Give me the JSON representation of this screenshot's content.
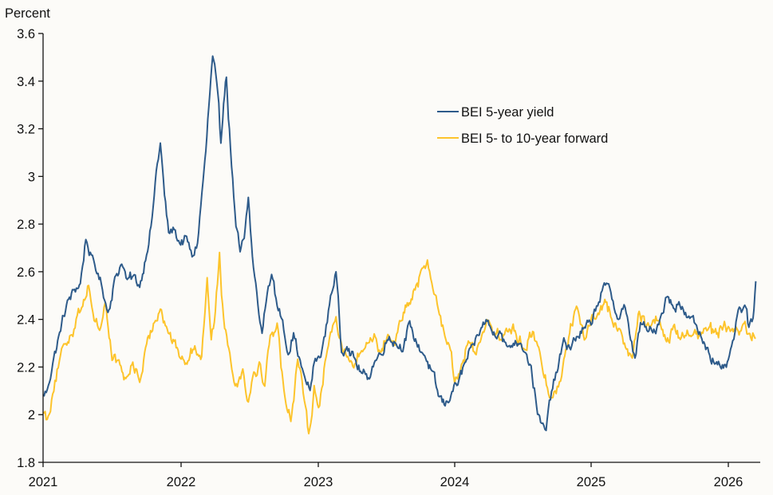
{
  "chart_data": {
    "type": "line",
    "title": "",
    "ylabel": "Percent",
    "xlabel": "",
    "ylim": [
      1.8,
      3.6
    ],
    "xlim": [
      2021.0,
      2026.23
    ],
    "yticks": [
      1.8,
      2,
      2.2,
      2.4,
      2.6,
      2.8,
      3,
      3.2,
      3.4,
      3.6
    ],
    "ytick_labels": [
      "1.8",
      "2",
      "2.2",
      "2.4",
      "2.6",
      "2.8",
      "3",
      "3.2",
      "3.4",
      "3.6"
    ],
    "xticks": [
      2021,
      2022,
      2023,
      2024,
      2025,
      2026
    ],
    "xtick_labels": [
      "2021",
      "2022",
      "2023",
      "2024",
      "2025",
      "2026"
    ],
    "grid": false,
    "legend_position": "top-right",
    "colors": {
      "background": "#fcfbf8",
      "axis": "#111111"
    },
    "series": [
      {
        "name": "BEI 5-year yield",
        "color": "#2e5b8a",
        "x": [
          2021.0,
          2021.03,
          2021.07,
          2021.12,
          2021.17,
          2021.22,
          2021.27,
          2021.31,
          2021.35,
          2021.39,
          2021.43,
          2021.47,
          2021.52,
          2021.57,
          2021.61,
          2021.66,
          2021.7,
          2021.75,
          2021.79,
          2021.82,
          2021.85,
          2021.88,
          2021.91,
          2021.95,
          2021.99,
          2022.04,
          2022.08,
          2022.12,
          2022.16,
          2022.18,
          2022.21,
          2022.23,
          2022.26,
          2022.29,
          2022.31,
          2022.33,
          2022.36,
          2022.4,
          2022.43,
          2022.46,
          2022.49,
          2022.52,
          2022.56,
          2022.59,
          2022.62,
          2022.66,
          2022.7,
          2022.74,
          2022.78,
          2022.82,
          2022.86,
          2022.9,
          2022.94,
          2022.97,
          2023.01,
          2023.05,
          2023.09,
          2023.13,
          2023.17,
          2023.21,
          2023.26,
          2023.31,
          2023.36,
          2023.41,
          2023.46,
          2023.52,
          2023.57,
          2023.62,
          2023.67,
          2023.72,
          2023.78,
          2023.83,
          2023.88,
          2023.93,
          2023.98,
          2024.03,
          2024.08,
          2024.13,
          2024.18,
          2024.23,
          2024.28,
          2024.33,
          2024.38,
          2024.43,
          2024.48,
          2024.52,
          2024.56,
          2024.6,
          2024.63,
          2024.67,
          2024.71,
          2024.75,
          2024.8,
          2024.85,
          2024.9,
          2024.95,
          2025.0,
          2025.04,
          2025.08,
          2025.12,
          2025.16,
          2025.2,
          2025.24,
          2025.28,
          2025.32,
          2025.36,
          2025.4,
          2025.45,
          2025.5,
          2025.55,
          2025.6,
          2025.64,
          2025.68,
          2025.72,
          2025.76,
          2025.8,
          2025.85,
          2025.9,
          2025.95,
          2026.0,
          2026.04,
          2026.08,
          2026.12,
          2026.15,
          2026.18,
          2026.2
        ],
        "values": [
          2.08,
          2.1,
          2.22,
          2.34,
          2.46,
          2.52,
          2.55,
          2.74,
          2.66,
          2.6,
          2.53,
          2.43,
          2.57,
          2.64,
          2.56,
          2.58,
          2.54,
          2.68,
          2.82,
          3.02,
          3.14,
          2.92,
          2.76,
          2.78,
          2.72,
          2.74,
          2.66,
          2.72,
          2.98,
          3.1,
          3.35,
          3.5,
          3.38,
          3.14,
          3.32,
          3.42,
          3.12,
          2.78,
          2.68,
          2.73,
          2.91,
          2.66,
          2.46,
          2.34,
          2.48,
          2.6,
          2.45,
          2.4,
          2.26,
          2.34,
          2.24,
          2.15,
          2.1,
          2.22,
          2.24,
          2.33,
          2.5,
          2.6,
          2.26,
          2.3,
          2.24,
          2.18,
          2.15,
          2.22,
          2.26,
          2.33,
          2.3,
          2.28,
          2.38,
          2.3,
          2.25,
          2.18,
          2.08,
          2.04,
          2.1,
          2.14,
          2.22,
          2.28,
          2.34,
          2.4,
          2.34,
          2.36,
          2.28,
          2.3,
          2.31,
          2.27,
          2.2,
          2.04,
          1.96,
          1.93,
          2.1,
          2.18,
          2.31,
          2.28,
          2.33,
          2.36,
          2.38,
          2.46,
          2.52,
          2.54,
          2.48,
          2.4,
          2.46,
          2.34,
          2.24,
          2.38,
          2.36,
          2.34,
          2.4,
          2.5,
          2.45,
          2.48,
          2.42,
          2.4,
          2.38,
          2.33,
          2.28,
          2.22,
          2.18,
          2.22,
          2.32,
          2.44,
          2.46,
          2.36,
          2.4,
          2.56
        ]
      },
      {
        "name": "BEI 5- to 10-year forward",
        "color": "#fdc42c",
        "x": [
          2021.0,
          2021.03,
          2021.07,
          2021.11,
          2021.15,
          2021.2,
          2021.24,
          2021.28,
          2021.33,
          2021.37,
          2021.41,
          2021.45,
          2021.5,
          2021.55,
          2021.6,
          2021.65,
          2021.7,
          2021.75,
          2021.8,
          2021.85,
          2021.9,
          2021.95,
          2022.0,
          2022.05,
          2022.1,
          2022.15,
          2022.19,
          2022.22,
          2022.25,
          2022.28,
          2022.31,
          2022.34,
          2022.37,
          2022.41,
          2022.45,
          2022.49,
          2022.53,
          2022.57,
          2022.61,
          2022.65,
          2022.7,
          2022.75,
          2022.8,
          2022.85,
          2022.89,
          2022.93,
          2022.97,
          2023.01,
          2023.05,
          2023.09,
          2023.13,
          2023.17,
          2023.21,
          2023.26,
          2023.31,
          2023.36,
          2023.41,
          2023.46,
          2023.51,
          2023.56,
          2023.61,
          2023.66,
          2023.71,
          2023.76,
          2023.8,
          2023.84,
          2023.88,
          2023.92,
          2023.96,
          2024.0,
          2024.05,
          2024.1,
          2024.15,
          2024.2,
          2024.25,
          2024.3,
          2024.35,
          2024.4,
          2024.45,
          2024.5,
          2024.55,
          2024.6,
          2024.64,
          2024.68,
          2024.72,
          2024.76,
          2024.8,
          2024.85,
          2024.9,
          2024.95,
          2025.0,
          2025.05,
          2025.1,
          2025.15,
          2025.2,
          2025.25,
          2025.3,
          2025.35,
          2025.4,
          2025.45,
          2025.5,
          2025.55,
          2025.6,
          2025.65,
          2025.7,
          2025.75,
          2025.8,
          2025.85,
          2025.9,
          2025.95,
          2026.0,
          2026.05,
          2026.1,
          2026.15,
          2026.2
        ],
        "values": [
          2.02,
          1.98,
          2.1,
          2.2,
          2.28,
          2.34,
          2.4,
          2.46,
          2.55,
          2.4,
          2.36,
          2.47,
          2.24,
          2.22,
          2.14,
          2.22,
          2.14,
          2.28,
          2.38,
          2.46,
          2.36,
          2.3,
          2.24,
          2.22,
          2.3,
          2.24,
          2.58,
          2.32,
          2.44,
          2.68,
          2.4,
          2.3,
          2.2,
          2.12,
          2.2,
          2.06,
          2.18,
          2.22,
          2.12,
          2.34,
          2.38,
          2.1,
          1.98,
          2.24,
          2.08,
          1.92,
          2.12,
          2.04,
          2.22,
          2.34,
          2.42,
          2.3,
          2.24,
          2.2,
          2.26,
          2.3,
          2.34,
          2.26,
          2.34,
          2.3,
          2.4,
          2.46,
          2.52,
          2.6,
          2.64,
          2.54,
          2.44,
          2.36,
          2.3,
          2.14,
          2.22,
          2.3,
          2.26,
          2.34,
          2.4,
          2.34,
          2.32,
          2.36,
          2.34,
          2.28,
          2.34,
          2.3,
          2.2,
          2.12,
          2.08,
          2.12,
          2.24,
          2.38,
          2.44,
          2.32,
          2.4,
          2.44,
          2.48,
          2.4,
          2.36,
          2.28,
          2.24,
          2.44,
          2.36,
          2.4,
          2.4,
          2.3,
          2.36,
          2.32,
          2.36,
          2.34,
          2.32,
          2.36,
          2.34,
          2.36,
          2.36,
          2.34,
          2.38,
          2.34,
          2.32
        ]
      }
    ]
  }
}
